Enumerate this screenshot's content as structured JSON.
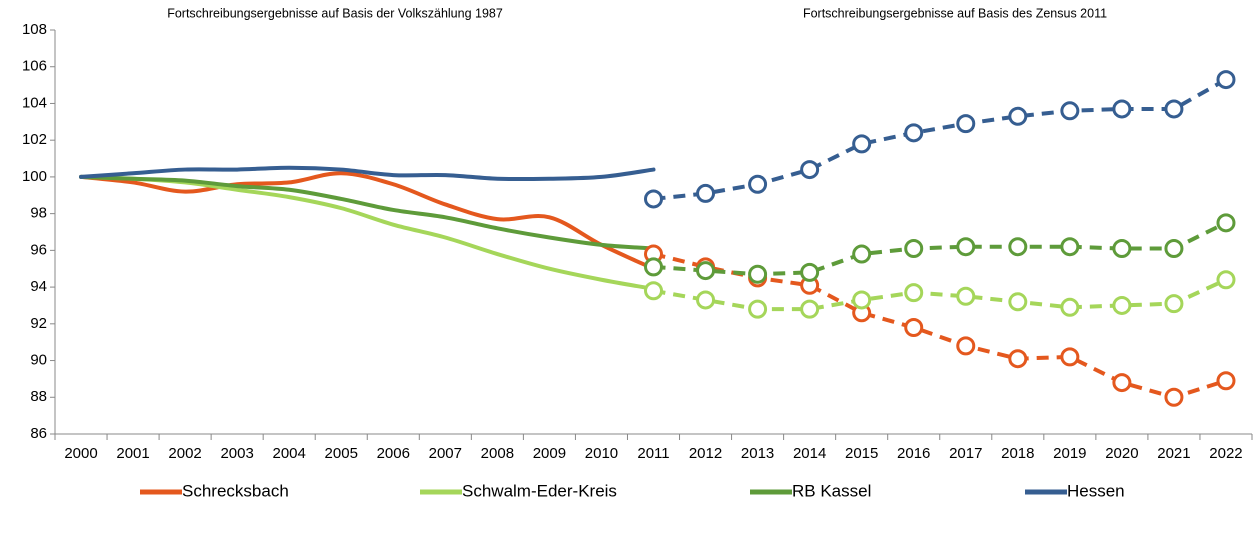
{
  "chart_data": {
    "type": "line",
    "annotations": [
      "Fortschreibungsergebnisse auf Basis der Volkszählung 1987",
      "Fortschreibungsergebnisse auf Basis des Zensus 2011"
    ],
    "categories": [
      "2000",
      "2001",
      "2002",
      "2003",
      "2004",
      "2005",
      "2006",
      "2007",
      "2008",
      "2009",
      "2010",
      "2011",
      "2012",
      "2013",
      "2014",
      "2015",
      "2016",
      "2017",
      "2018",
      "2019",
      "2020",
      "2021",
      "2022"
    ],
    "series": [
      {
        "name": "Schrecksbach",
        "color": "#e4581e",
        "values": [
          100,
          99.7,
          99.2,
          99.6,
          99.7,
          100.2,
          99.6,
          98.5,
          97.7,
          97.8,
          96.3,
          95.0,
          null,
          null,
          null,
          null,
          null,
          null,
          null,
          null,
          null,
          null,
          null
        ],
        "zensus_values": [
          null,
          null,
          null,
          null,
          null,
          null,
          null,
          null,
          null,
          null,
          null,
          95.8,
          95.1,
          94.5,
          94.1,
          92.6,
          91.8,
          90.8,
          90.1,
          90.2,
          88.8,
          88.0,
          88.9
        ]
      },
      {
        "name": "Schwalm-Eder-Kreis",
        "color": "#a5d65a",
        "values": [
          100,
          99.9,
          99.7,
          99.3,
          98.9,
          98.3,
          97.4,
          96.7,
          95.8,
          95.0,
          94.4,
          93.9,
          null,
          null,
          null,
          null,
          null,
          null,
          null,
          null,
          null,
          null,
          null
        ],
        "zensus_values": [
          null,
          null,
          null,
          null,
          null,
          null,
          null,
          null,
          null,
          null,
          null,
          93.8,
          93.3,
          92.8,
          92.8,
          93.3,
          93.7,
          93.5,
          93.2,
          92.9,
          93.0,
          93.1,
          94.4
        ]
      },
      {
        "name": "RB Kassel",
        "color": "#5e9b3a",
        "values": [
          100,
          99.9,
          99.8,
          99.5,
          99.3,
          98.8,
          98.2,
          97.8,
          97.2,
          96.7,
          96.3,
          96.1,
          null,
          null,
          null,
          null,
          null,
          null,
          null,
          null,
          null,
          null,
          null
        ],
        "zensus_values": [
          null,
          null,
          null,
          null,
          null,
          null,
          null,
          null,
          null,
          null,
          null,
          95.1,
          94.9,
          94.7,
          94.8,
          95.8,
          96.1,
          96.2,
          96.2,
          96.2,
          96.1,
          96.1,
          97.5
        ]
      },
      {
        "name": "Hessen",
        "color": "#365e91",
        "values": [
          100,
          100.2,
          100.4,
          100.4,
          100.5,
          100.4,
          100.1,
          100.1,
          99.9,
          99.9,
          100.0,
          100.4,
          null,
          null,
          null,
          null,
          null,
          null,
          null,
          null,
          null,
          null,
          null
        ],
        "zensus_values": [
          null,
          null,
          null,
          null,
          null,
          null,
          null,
          null,
          null,
          null,
          null,
          98.8,
          99.1,
          99.6,
          100.4,
          101.8,
          102.4,
          102.9,
          103.3,
          103.6,
          103.7,
          103.7,
          105.3
        ]
      }
    ],
    "ylim": [
      86,
      108
    ],
    "yticks": [
      86,
      88,
      90,
      92,
      94,
      96,
      98,
      100,
      102,
      104,
      106,
      108
    ],
    "grid": false,
    "legend": "bottom"
  }
}
